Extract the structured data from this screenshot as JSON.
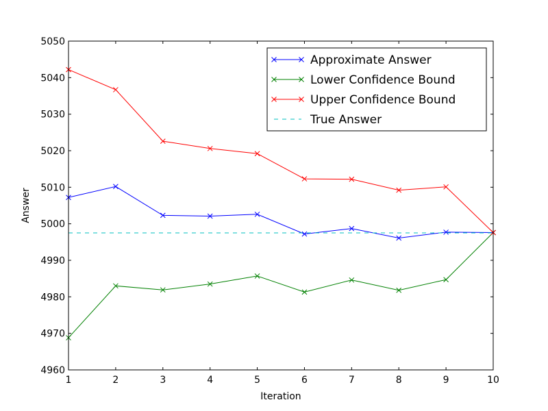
{
  "chart_data": {
    "type": "line",
    "xlabel": "Iteration",
    "ylabel": "Answer",
    "xlim": [
      1,
      10
    ],
    "ylim": [
      4960,
      5050
    ],
    "x_ticks": [
      1,
      2,
      3,
      4,
      5,
      6,
      7,
      8,
      9,
      10
    ],
    "y_ticks": [
      4960,
      4970,
      4980,
      4990,
      5000,
      5010,
      5020,
      5030,
      5040,
      5050
    ],
    "x": [
      1,
      2,
      3,
      4,
      5,
      6,
      7,
      8,
      9,
      10
    ],
    "grid": false,
    "legend_position": "top-right",
    "series": [
      {
        "name": "Approximate Answer",
        "color": "#0000ff",
        "marker": "x",
        "linestyle": "solid",
        "values": [
          5007.2,
          5010.2,
          5002.3,
          5002.1,
          5002.6,
          4997.2,
          4998.7,
          4996.1,
          4997.7,
          4997.6
        ]
      },
      {
        "name": "Lower Confidence Bound",
        "color": "#008000",
        "marker": "x",
        "linestyle": "solid",
        "values": [
          4968.8,
          4983.0,
          4981.9,
          4983.5,
          4985.7,
          4981.3,
          4984.6,
          4981.8,
          4984.7,
          4997.6
        ]
      },
      {
        "name": "Upper Confidence Bound",
        "color": "#ff0000",
        "marker": "x",
        "linestyle": "solid",
        "values": [
          5042.2,
          5036.7,
          5022.6,
          5020.6,
          5019.2,
          5012.3,
          5012.2,
          5009.2,
          5010.1,
          4997.6
        ]
      },
      {
        "name": "True Answer",
        "color": "#00bfbf",
        "marker": "none",
        "linestyle": "dashed",
        "values": [
          4997.5,
          4997.5,
          4997.5,
          4997.5,
          4997.5,
          4997.5,
          4997.5,
          4997.5,
          4997.5,
          4997.5
        ]
      }
    ]
  }
}
